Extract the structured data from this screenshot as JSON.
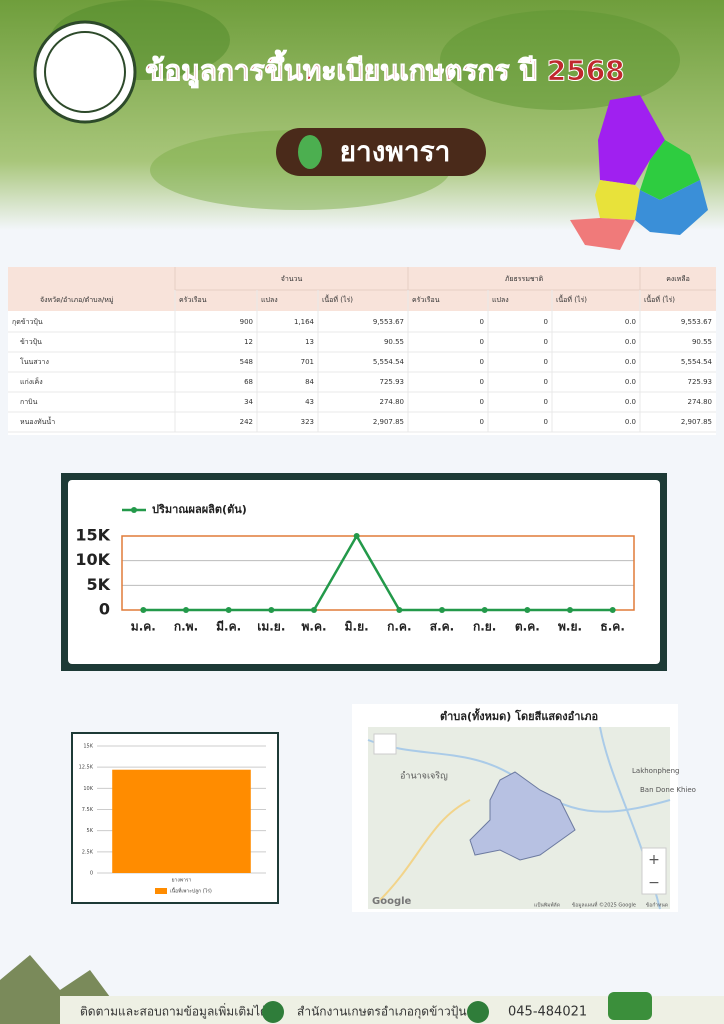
{
  "header": {
    "title": "ข้อมูลการขึ้นทะเบียนเกษตรกร ปี 2568",
    "crop": "ยางพารา"
  },
  "table": {
    "row_header": "จังหวัด/อำเภอ/ตำบล/หมู่",
    "group_headers": [
      "จำนวน",
      "ภัยธรรมชาติ",
      "คงเหลือ"
    ],
    "columns": [
      "ครัวเรือน",
      "แปลง",
      "เนื้อที่ (ไร่)",
      "ครัวเรือน",
      "แปลง",
      "เนื้อที่ (ไร่)",
      "เนื้อที่ (ไร่)"
    ],
    "rows": [
      [
        "กุดข้าวปุ้น",
        "900",
        "1,164",
        "9,553.67",
        "0",
        "0",
        "0.0",
        "9,553.67"
      ],
      [
        "ข้าวปุ้น",
        "12",
        "13",
        "90.55",
        "0",
        "0",
        "0.0",
        "90.55"
      ],
      [
        "โนนสวาง",
        "548",
        "701",
        "5,554.54",
        "0",
        "0",
        "0.0",
        "5,554.54"
      ],
      [
        "แก่งเค็ง",
        "68",
        "84",
        "725.93",
        "0",
        "0",
        "0.0",
        "725.93"
      ],
      [
        "กาบิน",
        "34",
        "43",
        "274.80",
        "0",
        "0",
        "0.0",
        "274.80"
      ],
      [
        "หนองทันน้ำ",
        "242",
        "323",
        "2,907.85",
        "0",
        "0",
        "0.0",
        "2,907.85"
      ]
    ]
  },
  "chart_data": [
    {
      "type": "line",
      "categories": [
        "ม.ค.",
        "ก.พ.",
        "มี.ค.",
        "เม.ย.",
        "พ.ค.",
        "มิ.ย.",
        "ก.ค.",
        "ส.ค.",
        "ก.ย.",
        "ต.ค.",
        "พ.ย.",
        "ธ.ค."
      ],
      "series": [
        {
          "name": "ปริมาณผลผลิต(ตัน)",
          "color": "#23994a",
          "values": [
            0,
            0,
            0,
            0,
            0,
            15000,
            0,
            0,
            0,
            0,
            0,
            0
          ]
        }
      ],
      "ylim": [
        0,
        15000
      ],
      "yticks": [
        0,
        {
          "value": 5000,
          "label": "5K"
        },
        {
          "value": 10000,
          "label": "10K"
        },
        {
          "value": 15000,
          "label": "15K"
        }
      ],
      "grid": true
    },
    {
      "type": "bar",
      "categories": [
        "ยางพารา"
      ],
      "series": [
        {
          "name": "เนื้อที่เพาะปลูก (ไร่)",
          "color": "#ff8c00",
          "values": [
            12200
          ]
        }
      ],
      "ylim": [
        0,
        15000
      ],
      "yticks": [
        0,
        {
          "value": 2500,
          "label": "2.5K"
        },
        {
          "value": 5000,
          "label": "5K"
        },
        {
          "value": 7500,
          "label": "7.5K"
        },
        {
          "value": 10000,
          "label": "10K"
        },
        {
          "value": 12500,
          "label": "12.5K"
        },
        {
          "value": 15000,
          "label": "15K"
        }
      ],
      "grid": true
    }
  ],
  "map": {
    "title": "ตำบล(ทั้งหมด) โดยสีแสดงอำเภอ",
    "labels": [
      "อำนาจเจริญ",
      "Lakhonpheng",
      "Ban Done Khieo",
      "Google"
    ],
    "zoom_in": "+",
    "zoom_out": "−",
    "attribution": [
      "แป้นพิมพ์ลัด",
      "ข้อมูลแผนที่ ©2025 Google",
      "ข้อกำหนด"
    ]
  },
  "footer": {
    "follow": "ติดตามและสอบถามข้อมูลเพิ่มเติมได้ที่",
    "office": "สำนักงานเกษตรอำเภอกุดข้าวปุ้น",
    "phone": "045-484021"
  }
}
